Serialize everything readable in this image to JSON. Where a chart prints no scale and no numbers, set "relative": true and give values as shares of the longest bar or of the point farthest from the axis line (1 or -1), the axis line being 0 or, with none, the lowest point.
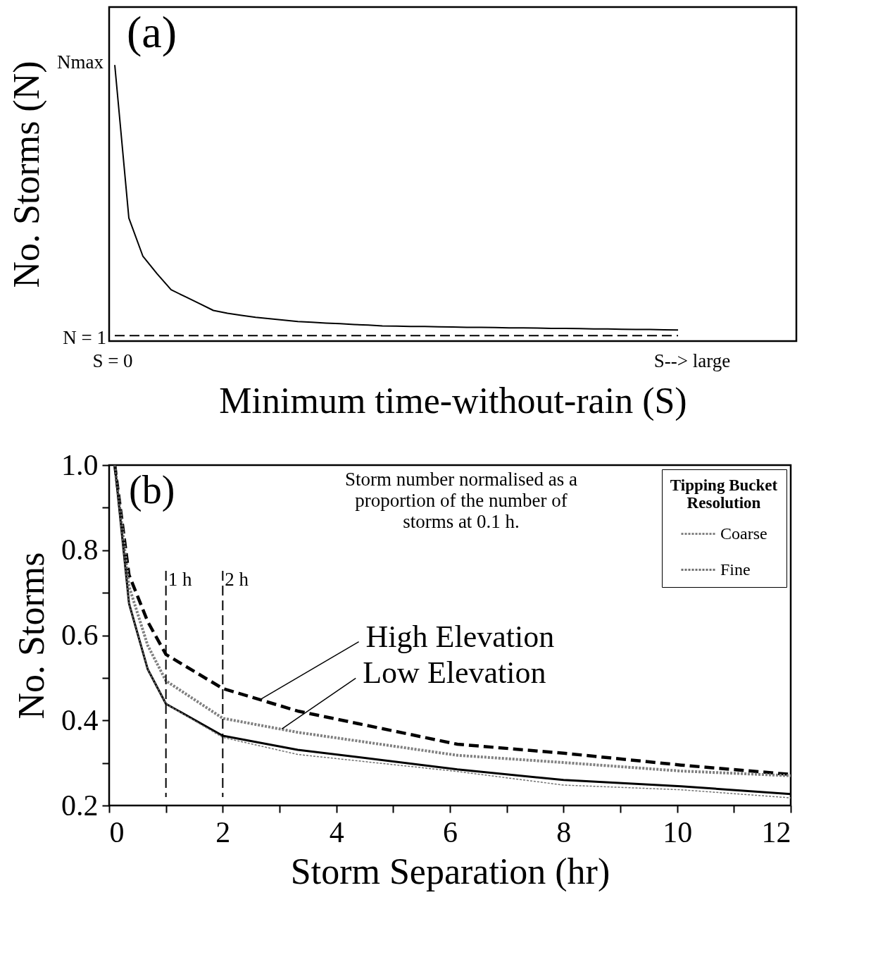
{
  "chart_data": [
    {
      "type": "line",
      "relative": true,
      "xlabel": "Minimum time-without-rain (S)",
      "ylabel": "No. Storms (N)",
      "categories": [
        null,
        null,
        null,
        null,
        null,
        null,
        null,
        null,
        null,
        null,
        null,
        null,
        null,
        null,
        null,
        null,
        null,
        null,
        null,
        null,
        null,
        null,
        null,
        null,
        null,
        null,
        null,
        null,
        null,
        null,
        null,
        null,
        null,
        null,
        null,
        null,
        null,
        null,
        null,
        null,
        null
      ],
      "grid": false,
      "legend": false,
      "annotations": [
        "(a)",
        "Nmax",
        "N = 1",
        "S = 0",
        "S--> large"
      ],
      "series": [
        {
          "color": "#000000",
          "line_style": "solid",
          "values": [
            1.0,
            0.446,
            0.307,
            0.244,
            0.186,
            0.161,
            0.136,
            0.111,
            0.101,
            0.093,
            0.086,
            0.081,
            0.076,
            0.071,
            0.068,
            0.065,
            0.063,
            0.06,
            0.058,
            0.055,
            0.054,
            0.053,
            0.053,
            0.052,
            0.051,
            0.05,
            0.05,
            0.049,
            0.048,
            0.048,
            0.047,
            0.046,
            0.046,
            0.045,
            0.044,
            0.044,
            0.043,
            0.042,
            0.042,
            0.041,
            0.04
          ]
        },
        {
          "color": "#000000",
          "line_style": "dashed",
          "values": [
            0.02,
            0.02,
            0.02,
            0.02,
            0.02,
            0.02,
            0.02,
            0.02,
            0.02,
            0.02,
            0.02,
            0.02,
            0.02,
            0.02,
            0.02,
            0.02,
            0.02,
            0.02,
            0.02,
            0.02,
            0.02,
            0.02,
            0.02,
            0.02,
            0.02,
            0.02,
            0.02,
            0.02,
            0.02,
            0.02,
            0.02,
            0.02,
            0.02,
            0.02,
            0.02,
            0.02,
            0.02,
            0.02,
            0.02,
            0.02,
            0.02
          ]
        }
      ]
    },
    {
      "type": "line",
      "xlabel": "Storm Separation (hr)",
      "ylabel": "No. Storms",
      "xlim": [
        0,
        12
      ],
      "ylim": [
        0.2,
        1.0
      ],
      "xticks": [
        0,
        {
          "value": 1,
          "label": null
        },
        2,
        {
          "value": 3,
          "label": null
        },
        4,
        {
          "value": 5,
          "label": null
        },
        6,
        {
          "value": 7,
          "label": null
        },
        8,
        {
          "value": 9,
          "label": null
        },
        10,
        {
          "value": 11,
          "label": null
        },
        12
      ],
      "yticks": [
        0.2,
        {
          "value": 0.3,
          "label": null
        },
        0.4,
        {
          "value": 0.5,
          "label": null
        },
        0.6,
        {
          "value": 0.7,
          "label": null
        },
        0.8,
        {
          "value": 0.9,
          "label": null
        },
        {
          "value": 1.0,
          "label": "1.0"
        }
      ],
      "grid": false,
      "legend": "top right",
      "legend_title": "Tipping Bucket Resolution",
      "ref_lines": [
        {
          "axis": "x",
          "value": 1,
          "label": "1 h",
          "color": "#000000",
          "line_style": "dashed"
        },
        {
          "axis": "x",
          "value": 2,
          "label": "2 h",
          "color": "#000000",
          "line_style": "dashed"
        }
      ],
      "annotations": [
        "(b)",
        "Storm number normalised as a proportion of the number of storms at 0.1 h.",
        {
          "text": "High Elevation",
          "x": 2.66,
          "y": 0.449
        },
        {
          "text": "Low Elevation",
          "x": 3.04,
          "y": 0.38
        }
      ],
      "series": [
        {
          "color": "#000000",
          "line_style": "dashed",
          "x": [
            0.1,
            0.35,
            0.68,
            1,
            2,
            3.32,
            6.13,
            8,
            10.07,
            12
          ],
          "values": [
            1.0,
            0.742,
            0.632,
            0.555,
            0.475,
            0.422,
            0.344,
            0.323,
            0.295,
            0.273
          ]
        },
        {
          "name": "Coarse",
          "color": "#808080",
          "line_style": "dotted",
          "x": [
            0.1,
            0.35,
            0.68,
            1,
            2,
            3.32,
            6.13,
            8,
            10.07,
            12
          ],
          "values": [
            1.0,
            0.715,
            0.576,
            0.493,
            0.405,
            0.372,
            0.318,
            0.301,
            0.281,
            0.27
          ]
        },
        {
          "color": "#000000",
          "line_style": "solid",
          "x": [
            0.1,
            0.35,
            0.68,
            1,
            2,
            3.32,
            6.13,
            8,
            10.07,
            12
          ],
          "values": [
            1.0,
            0.675,
            0.52,
            0.439,
            0.364,
            0.331,
            0.285,
            0.26,
            0.245,
            0.227
          ]
        },
        {
          "name": "Fine",
          "color": "#707070",
          "line_style": "dotted",
          "x": [
            0.1,
            0.35,
            0.68,
            1,
            2,
            3.32,
            6.13,
            8,
            10.07,
            12
          ],
          "values": [
            1.0,
            0.675,
            0.52,
            0.439,
            0.36,
            0.32,
            0.28,
            0.248,
            0.237,
            0.218
          ]
        }
      ]
    }
  ]
}
